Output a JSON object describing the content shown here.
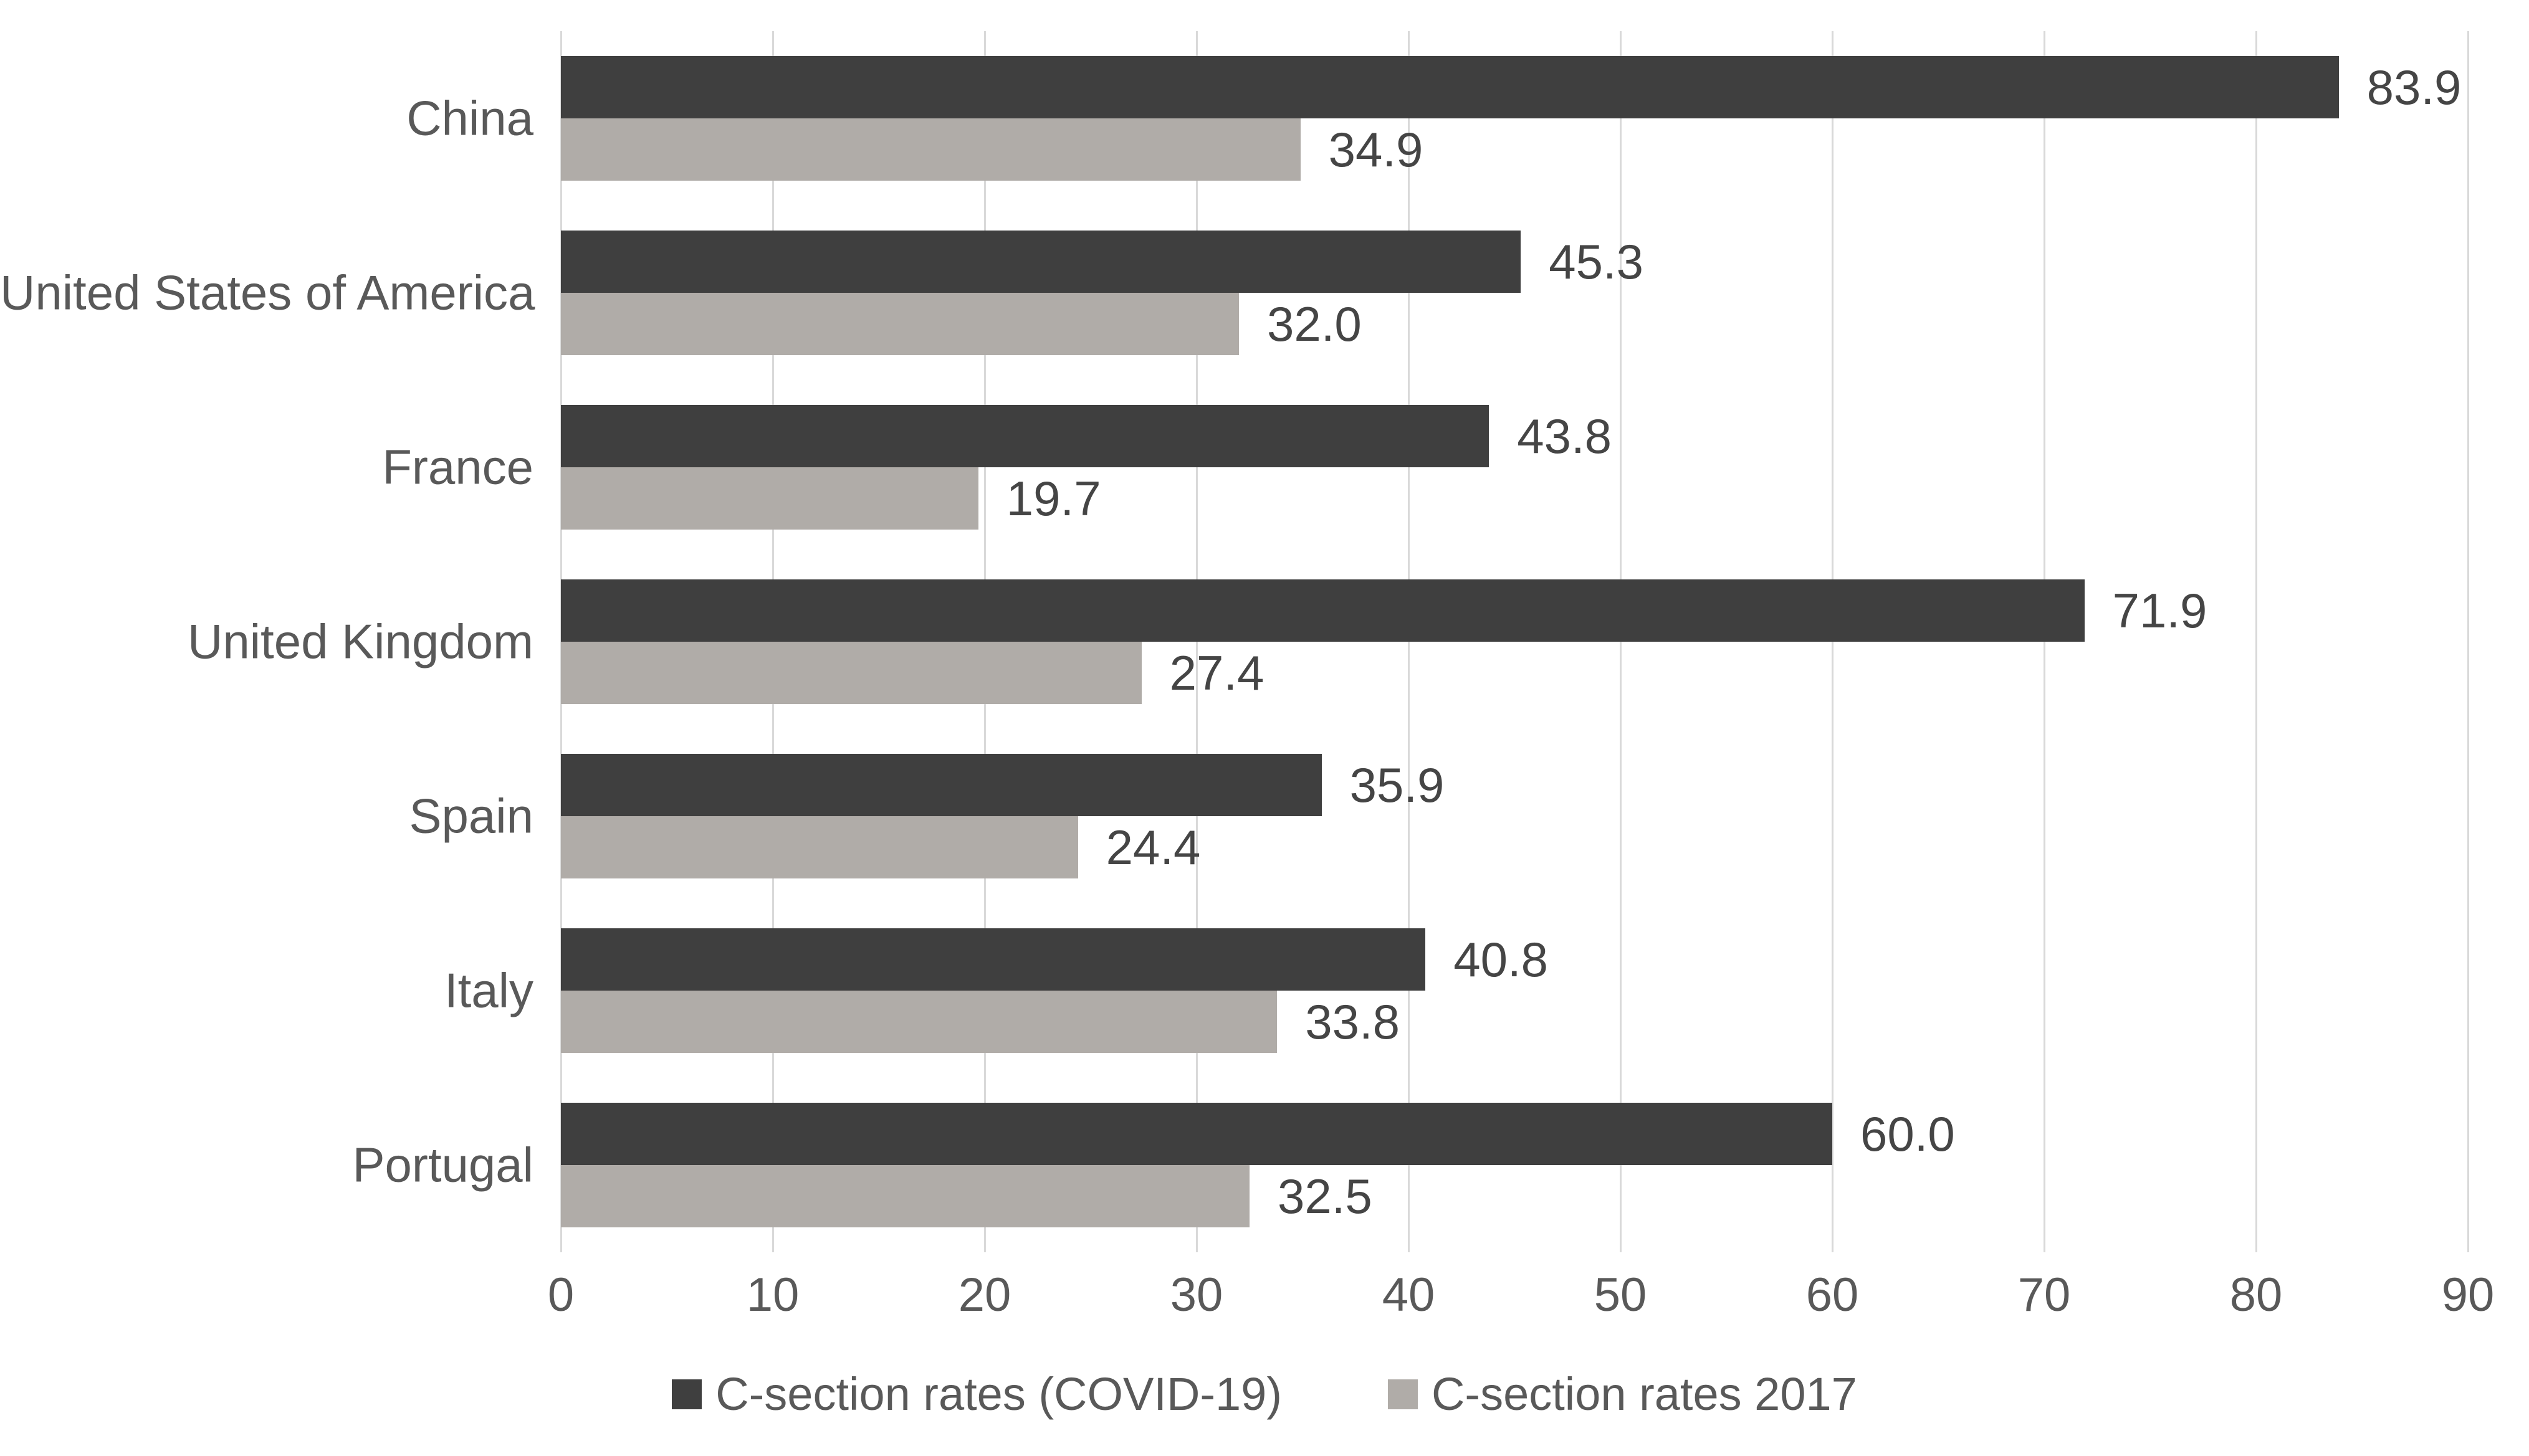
{
  "chart_data": {
    "type": "bar",
    "orientation": "horizontal",
    "title": "",
    "xlabel": "",
    "ylabel": "",
    "categories": [
      "China",
      "United States of America",
      "France",
      "United Kingdom",
      "Spain",
      "Italy",
      "Portugal"
    ],
    "series": [
      {
        "name": "C-section rates (COVID-19)",
        "color": "#3F3F3F",
        "values": [
          83.9,
          45.3,
          43.8,
          71.9,
          35.9,
          40.8,
          60.0
        ],
        "labels": [
          "83.9",
          "45.3",
          "43.8",
          "71.9",
          "35.9",
          "40.8",
          "60.0"
        ]
      },
      {
        "name": "C-section rates 2017",
        "color": "#B0ACA8",
        "values": [
          34.9,
          32.0,
          19.7,
          27.4,
          24.4,
          33.8,
          32.5
        ],
        "labels": [
          "34.9",
          "32.0",
          "19.7",
          "27.4",
          "24.4",
          "33.8",
          "32.5"
        ]
      }
    ],
    "xlim": [
      0,
      90
    ],
    "xticks": [
      0,
      10,
      20,
      30,
      40,
      50,
      60,
      70,
      80,
      90
    ],
    "grid": true,
    "gridline_color": "#D9D9D9",
    "text_color": "#595959",
    "value_label_color": "#454545",
    "legend_position": "bottom"
  }
}
